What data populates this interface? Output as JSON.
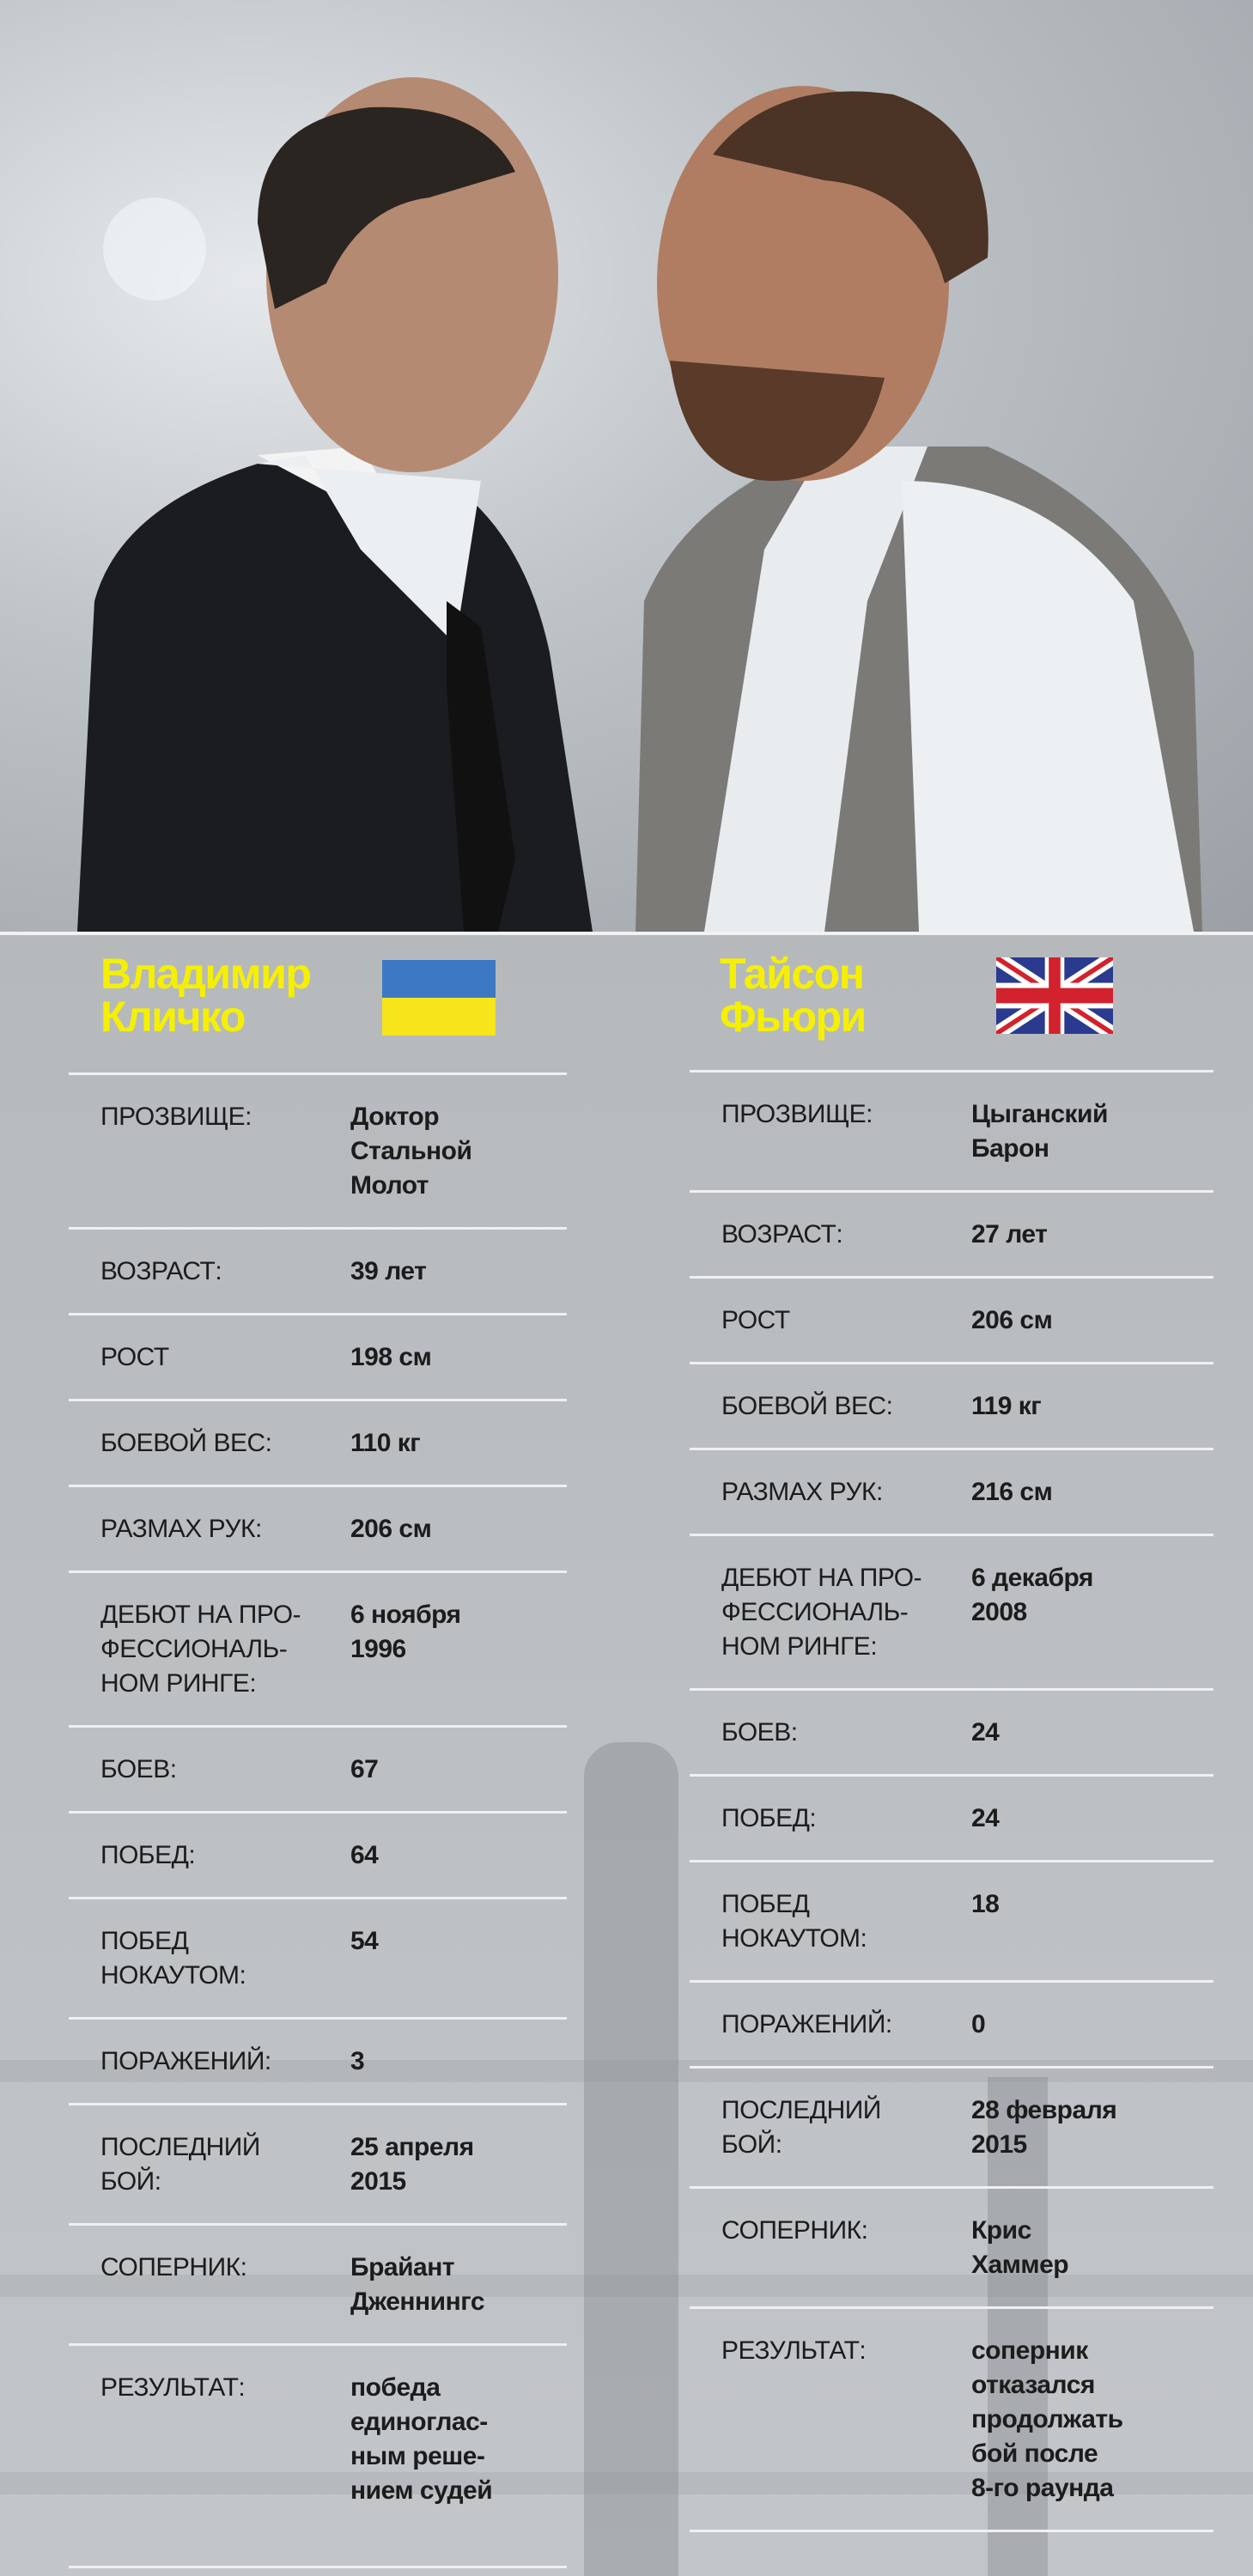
{
  "colors": {
    "name": "#f5f000",
    "background": "#b9bcbf",
    "divider": "#eef0f2"
  },
  "fighters": [
    {
      "name_line1": "Владимир",
      "name_line2": "Кличко",
      "flag": "ukraine-flag-icon",
      "rows": [
        {
          "label": "ПРОЗВИЩЕ:",
          "value": "Доктор\nСтальной\nМолот"
        },
        {
          "label": "ВОЗРАСТ:",
          "value": "39 лет"
        },
        {
          "label": "РОСТ",
          "value": "198 см"
        },
        {
          "label": "БОЕВОЙ ВЕС:",
          "value": "110 кг"
        },
        {
          "label": "РАЗМАХ РУК:",
          "value": "206 см"
        },
        {
          "label": "ДЕБЮТ НА ПРО-\nФЕССИОНАЛЬ-\nНОМ РИНГЕ:",
          "value": "6 ноября\n1996"
        },
        {
          "label": "БОЕВ:",
          "value": "67"
        },
        {
          "label": "ПОБЕД:",
          "value": "64"
        },
        {
          "label": "ПОБЕД\nНОКАУТОМ:",
          "value": "54"
        },
        {
          "label": "ПОРАЖЕНИЙ:",
          "value": "3"
        },
        {
          "label": "ПОСЛЕДНИЙ\nБОЙ:",
          "value": "25 апреля\n2015"
        },
        {
          "label": "СОПЕРНИК:",
          "value": "Брайант\nДженнингс"
        },
        {
          "label": "РЕЗУЛЬТАТ:",
          "value": "победа\nединоглас-\nным реше-\nнием судей"
        }
      ]
    },
    {
      "name_line1": "Тайсон",
      "name_line2": "Фьюри",
      "flag": "uk-flag-icon",
      "rows": [
        {
          "label": "ПРОЗВИЩЕ:",
          "value": "Цыганский\nБарон"
        },
        {
          "label": "ВОЗРАСТ:",
          "value": "27 лет"
        },
        {
          "label": "РОСТ",
          "value": "206 см"
        },
        {
          "label": "БОЕВОЙ ВЕС:",
          "value": "119 кг"
        },
        {
          "label": "РАЗМАХ РУК:",
          "value": "216 см"
        },
        {
          "label": "ДЕБЮТ НА ПРО-\nФЕССИОНАЛЬ-\nНОМ РИНГЕ:",
          "value": "6 декабря\n2008"
        },
        {
          "label": "БОЕВ:",
          "value": "24"
        },
        {
          "label": "ПОБЕД:",
          "value": "24"
        },
        {
          "label": "ПОБЕД\nНОКАУТОМ:",
          "value": "18"
        },
        {
          "label": "ПОРАЖЕНИЙ:",
          "value": "0"
        },
        {
          "label": "ПОСЛЕДНИЙ\nБОЙ:",
          "value": "28 февраля\n2015"
        },
        {
          "label": "СОПЕРНИК:",
          "value": "Крис\nХаммер"
        },
        {
          "label": "РЕЗУЛЬТАТ:",
          "value": "соперник\nотказался\nпродолжать\nбой после\n8-го раунда"
        }
      ]
    }
  ]
}
